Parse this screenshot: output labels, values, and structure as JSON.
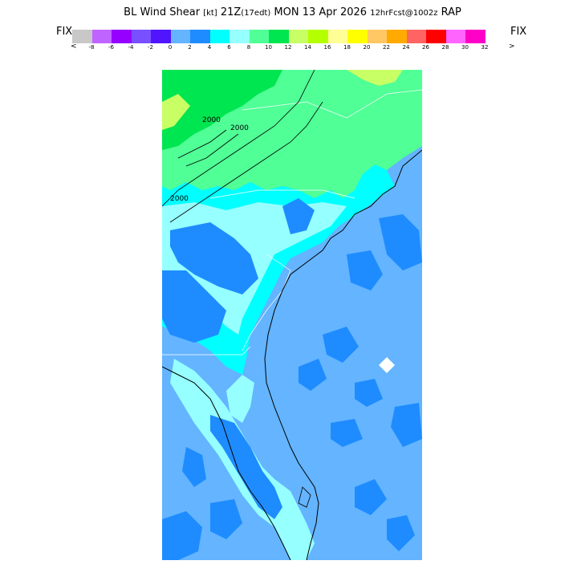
{
  "header": {
    "title_main": "BL Wind Shear ",
    "title_units": "[kt]",
    "title_time": " 21Z",
    "title_edt": "(17edt)",
    "title_date": " MON 13 Apr 2026 ",
    "title_fcst": "12hrFcst@1002z",
    "title_model": " RAP"
  },
  "legend": {
    "left_button": "FIX",
    "right_button": "FIX",
    "left_arrow": "<",
    "right_arrow": ">",
    "colors": [
      "#c8c8c8",
      "#c064ff",
      "#9600ff",
      "#7850ff",
      "#5014ff",
      "#64b4ff",
      "#1e8cff",
      "#00ffff",
      "#96ffff",
      "#50ff96",
      "#00e650",
      "#c8ff64",
      "#b4ff00",
      "#ffff96",
      "#ffff00",
      "#ffc864",
      "#ffaa00",
      "#ff6464",
      "#ff0000",
      "#ff64ff",
      "#ff00c8"
    ],
    "tick_labels": [
      "-8",
      "-6",
      "-4",
      "-2",
      "0",
      "2",
      "4",
      "6",
      "8",
      "10",
      "12",
      "14",
      "16",
      "18",
      "20",
      "22",
      "24",
      "26",
      "28",
      "30",
      "32"
    ]
  },
  "map": {
    "contour_labels": [
      "2000",
      "2000",
      "2000"
    ]
  }
}
